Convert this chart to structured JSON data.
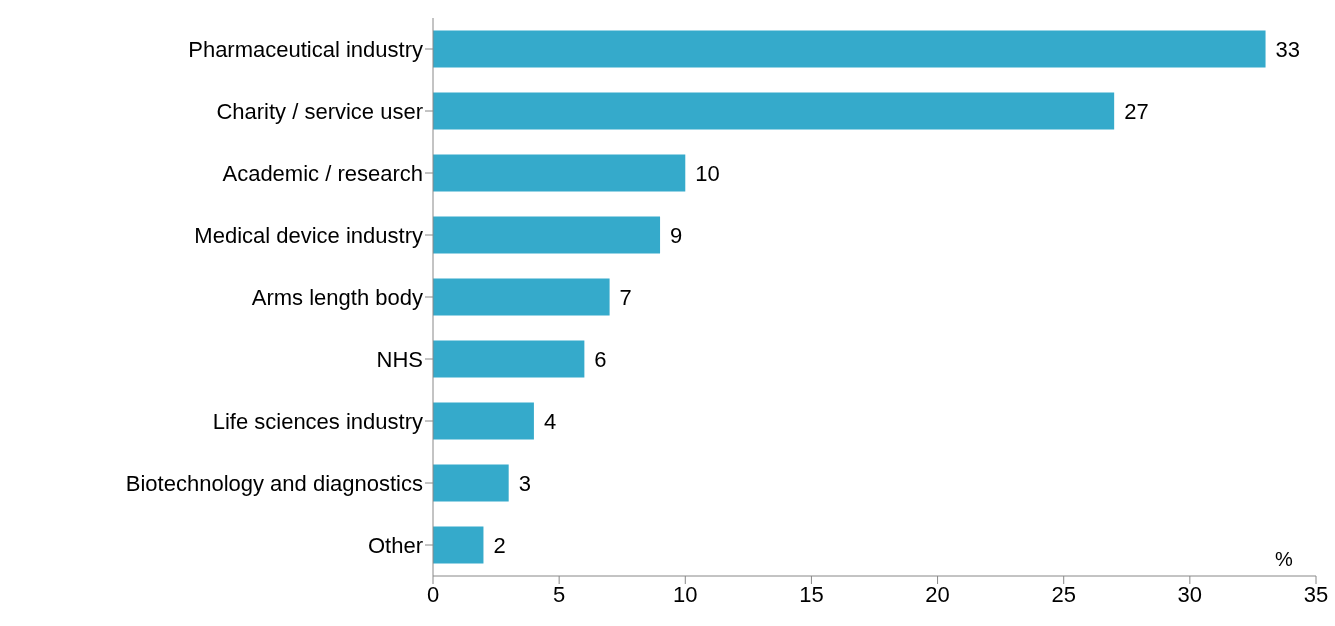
{
  "chart_data": {
    "type": "bar",
    "orientation": "horizontal",
    "xlabel": "%",
    "categories": [
      "Pharmaceutical industry",
      "Charity / service user",
      "Academic / research",
      "Medical device industry",
      "Arms length body",
      "NHS",
      "Life sciences industry",
      "Biotechnology and diagnostics",
      "Other"
    ],
    "values": [
      33,
      27,
      10,
      9,
      7,
      6,
      4,
      3,
      2
    ],
    "color": "#35aacb",
    "xlim": [
      0,
      35
    ],
    "xticks": [
      0,
      5,
      10,
      15,
      20,
      25,
      30,
      35
    ],
    "data_labels": true,
    "grid": false
  }
}
